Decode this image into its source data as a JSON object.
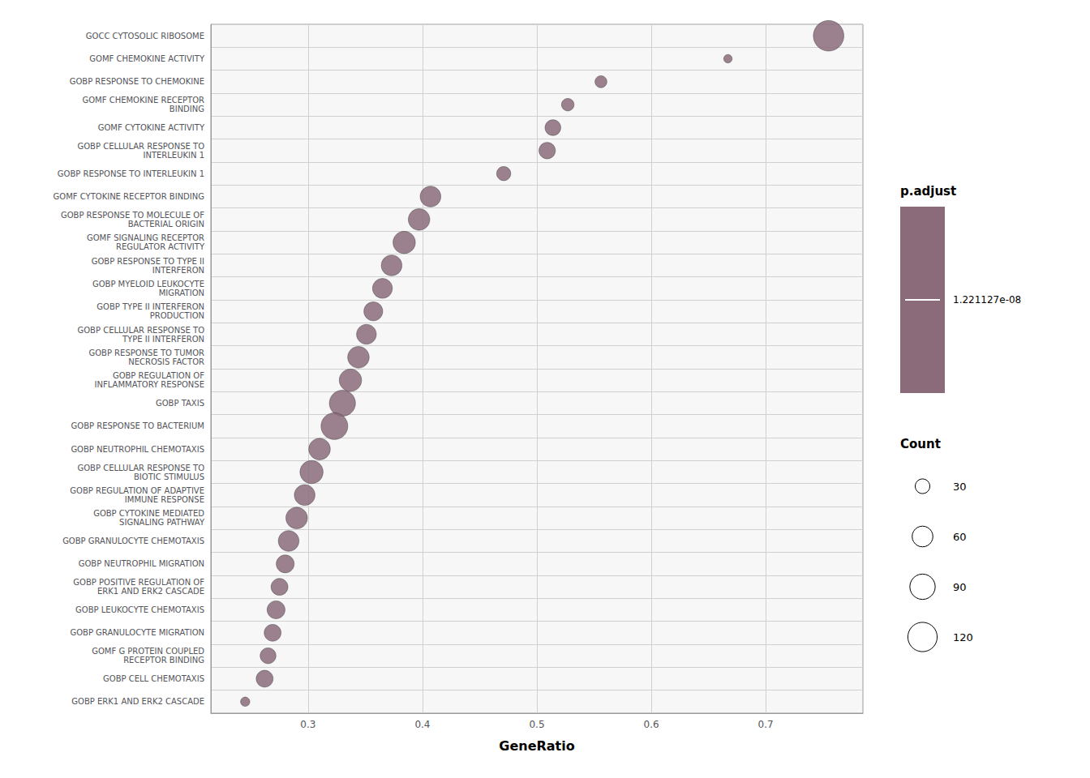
{
  "chart_data": {
    "type": "scatter",
    "categories": [
      "GOCC CYTOSOLIC RIBOSOME",
      "GOMF CHEMOKINE ACTIVITY",
      "GOBP RESPONSE TO CHEMOKINE",
      "GOMF CHEMOKINE RECEPTOR\nBINDING",
      "GOMF CYTOKINE ACTIVITY",
      "GOBP CELLULAR RESPONSE TO\nINTERLEUKIN 1",
      "GOBP RESPONSE TO INTERLEUKIN 1",
      "GOMF CYTOKINE RECEPTOR BINDING",
      "GOBP RESPONSE TO MOLECULE OF\nBACTERIAL ORIGIN",
      "GOMF SIGNALING RECEPTOR\nREGULATOR ACTIVITY",
      "GOBP RESPONSE TO TYPE II\nINTERFERON",
      "GOBP MYELOID LEUKOCYTE\nMIGRATION",
      "GOBP TYPE II INTERFERON\nPRODUCTION",
      "GOBP CELLULAR RESPONSE TO\nTYPE II INTERFERON",
      "GOBP RESPONSE TO TUMOR\nNECROSIS FACTOR",
      "GOBP REGULATION OF\nINFLAMMATORY RESPONSE",
      "GOBP TAXIS",
      "GOBP RESPONSE TO BACTERIUM",
      "GOBP NEUTROPHIL CHEMOTAXIS",
      "GOBP CELLULAR RESPONSE TO\nBIOTIC STIMULUS",
      "GOBP REGULATION OF ADAPTIVE\nIMMUNE RESPONSE",
      "GOBP CYTOKINE MEDIATED\nSIGNALING PATHWAY",
      "GOBP GRANULOCYTE CHEMOTAXIS",
      "GOBP NEUTROPHIL MIGRATION",
      "GOBP POSITIVE REGULATION OF\nERK1 AND ERK2 CASCADE",
      "GOBP LEUKOCYTE CHEMOTAXIS",
      "GOBP GRANULOCYTE MIGRATION",
      "GOMF G PROTEIN COUPLED\nRECEPTOR BINDING",
      "GOBP CELL CHEMOTAXIS",
      "GOBP ERK1 AND ERK2 CASCADE"
    ],
    "values": [
      0.755,
      0.667,
      0.556,
      0.527,
      0.514,
      0.509,
      0.471,
      0.407,
      0.397,
      0.384,
      0.373,
      0.365,
      0.357,
      0.351,
      0.344,
      0.337,
      0.33,
      0.323,
      0.31,
      0.303,
      0.297,
      0.29,
      0.283,
      0.28,
      0.275,
      0.272,
      0.269,
      0.265,
      0.262,
      0.245
    ],
    "sizes": [
      130,
      10,
      20,
      22,
      35,
      38,
      28,
      60,
      65,
      70,
      60,
      55,
      50,
      55,
      65,
      70,
      95,
      100,
      65,
      75,
      60,
      65,
      60,
      45,
      40,
      45,
      40,
      35,
      40,
      12
    ],
    "color": "#8B6B7A",
    "xlabel": "GeneRatio",
    "xlim": [
      0.215,
      0.785
    ],
    "xticks": [
      0.3,
      0.4,
      0.5,
      0.6,
      0.7
    ],
    "grid": true,
    "color_title": "p.adjust",
    "color_value": {
      "value": 1.221127e-08,
      "label": "1.221127e-08"
    },
    "size_title": "Count",
    "size_legend": [
      30,
      60,
      90,
      120
    ]
  }
}
